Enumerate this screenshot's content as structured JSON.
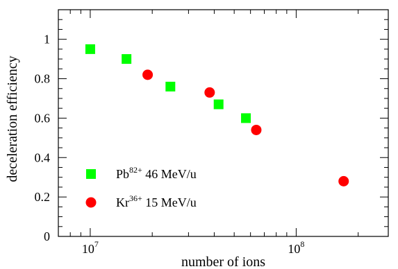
{
  "chart_data": {
    "type": "scatter",
    "xscale": "log",
    "xlabel": "number of ions",
    "ylabel": "deceleration efficiency",
    "xlim": [
      7000000,
      280000000
    ],
    "ylim": [
      0,
      1.15
    ],
    "grid": false,
    "legend_position": "bottom-left",
    "y_ticks": [
      0,
      0.2,
      0.4,
      0.6,
      0.8,
      1
    ],
    "y_tick_labels": [
      "0",
      "0.2",
      "0.4",
      "0.6",
      "0.8",
      "1"
    ],
    "x_major_ticks": [
      {
        "value": 10000000,
        "base": "10",
        "exp": "7"
      },
      {
        "value": 100000000,
        "base": "10",
        "exp": "8"
      }
    ],
    "series": [
      {
        "name_base": "Pb",
        "name_sup": "82+",
        "name_rest": " 46 MeV/u",
        "marker": "square",
        "color": "#00ff00",
        "points": [
          {
            "x": 10000000,
            "y": 0.95
          },
          {
            "x": 15000000,
            "y": 0.9
          },
          {
            "x": 24500000,
            "y": 0.76
          },
          {
            "x": 42000000,
            "y": 0.67
          },
          {
            "x": 57000000,
            "y": 0.6
          }
        ]
      },
      {
        "name_base": "Kr",
        "name_sup": "36+",
        "name_rest": " 15 MeV/u",
        "marker": "circle",
        "color": "#ff0000",
        "points": [
          {
            "x": 19000000,
            "y": 0.82
          },
          {
            "x": 38000000,
            "y": 0.73
          },
          {
            "x": 64000000,
            "y": 0.54
          },
          {
            "x": 170000000,
            "y": 0.28
          }
        ]
      }
    ]
  }
}
